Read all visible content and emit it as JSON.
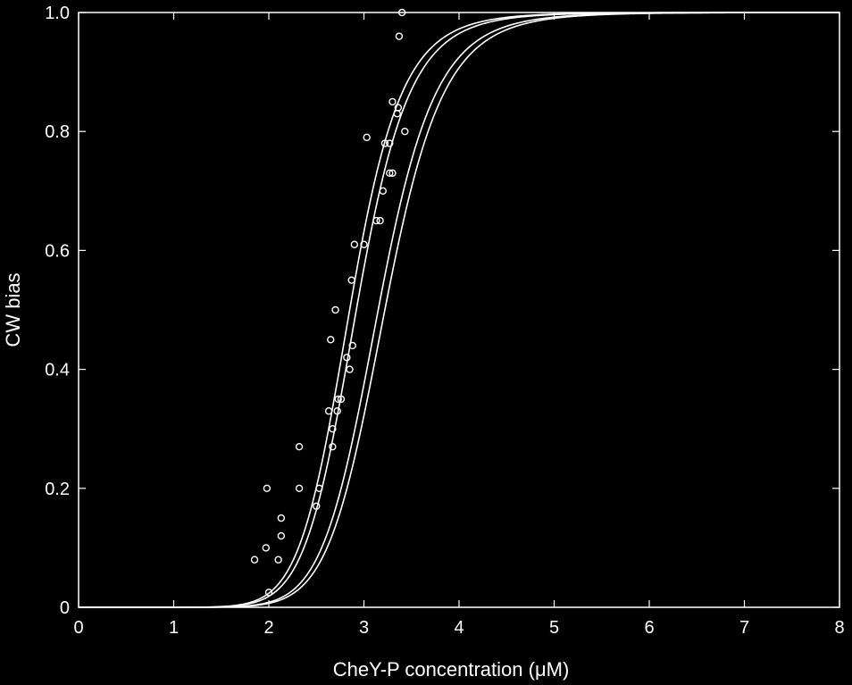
{
  "chart_data": {
    "type": "scatter",
    "xlabel": "CheY-P concentration (μM)",
    "ylabel": "CW bias",
    "xlim": [
      0,
      8
    ],
    "ylim": [
      0,
      1
    ],
    "xticks": [
      0,
      1,
      2,
      3,
      4,
      5,
      6,
      7,
      8
    ],
    "xtick_labels": [
      "0",
      "1",
      "2",
      "3",
      "4",
      "5",
      "6",
      "7",
      "8"
    ],
    "yticks": [
      0,
      0.2,
      0.4,
      0.6,
      0.8,
      1.0
    ],
    "ytick_labels": [
      "0",
      "0.2",
      "0.4",
      "0.6",
      "0.8",
      "1.0"
    ],
    "grid": false,
    "colors": {
      "background": "#000000",
      "foreground": "#ffffff"
    },
    "points": [
      {
        "x": 1.85,
        "y": 0.08
      },
      {
        "x": 1.97,
        "y": 0.1
      },
      {
        "x": 1.98,
        "y": 0.2
      },
      {
        "x": 2.0,
        "y": 0.025
      },
      {
        "x": 2.1,
        "y": 0.08
      },
      {
        "x": 2.13,
        "y": 0.12
      },
      {
        "x": 2.13,
        "y": 0.15
      },
      {
        "x": 2.32,
        "y": 0.27
      },
      {
        "x": 2.32,
        "y": 0.2
      },
      {
        "x": 2.5,
        "y": 0.17
      },
      {
        "x": 2.53,
        "y": 0.2
      },
      {
        "x": 2.63,
        "y": 0.33
      },
      {
        "x": 2.65,
        "y": 0.45
      },
      {
        "x": 2.67,
        "y": 0.27
      },
      {
        "x": 2.67,
        "y": 0.3
      },
      {
        "x": 2.7,
        "y": 0.5
      },
      {
        "x": 2.72,
        "y": 0.33
      },
      {
        "x": 2.73,
        "y": 0.35
      },
      {
        "x": 2.76,
        "y": 0.35
      },
      {
        "x": 2.82,
        "y": 0.42
      },
      {
        "x": 2.85,
        "y": 0.4
      },
      {
        "x": 2.87,
        "y": 0.55
      },
      {
        "x": 2.88,
        "y": 0.44
      },
      {
        "x": 2.9,
        "y": 0.61
      },
      {
        "x": 3.0,
        "y": 0.61
      },
      {
        "x": 3.03,
        "y": 0.79
      },
      {
        "x": 3.13,
        "y": 0.65
      },
      {
        "x": 3.17,
        "y": 0.65
      },
      {
        "x": 3.2,
        "y": 0.7
      },
      {
        "x": 3.22,
        "y": 0.78
      },
      {
        "x": 3.27,
        "y": 0.78
      },
      {
        "x": 3.27,
        "y": 0.73
      },
      {
        "x": 3.3,
        "y": 0.73
      },
      {
        "x": 3.3,
        "y": 0.85
      },
      {
        "x": 3.36,
        "y": 0.84
      },
      {
        "x": 3.37,
        "y": 0.96
      },
      {
        "x": 3.43,
        "y": 0.8
      },
      {
        "x": 3.4,
        "y": 1.0
      },
      {
        "x": 3.35,
        "y": 0.83
      }
    ],
    "curves": [
      {
        "type": "hill",
        "k": 2.85,
        "n": 10.5
      },
      {
        "type": "hill",
        "k": 2.92,
        "n": 10.5
      },
      {
        "type": "hill",
        "k": 3.15,
        "n": 10.5
      },
      {
        "type": "hill",
        "k": 3.22,
        "n": 10.5
      }
    ]
  }
}
